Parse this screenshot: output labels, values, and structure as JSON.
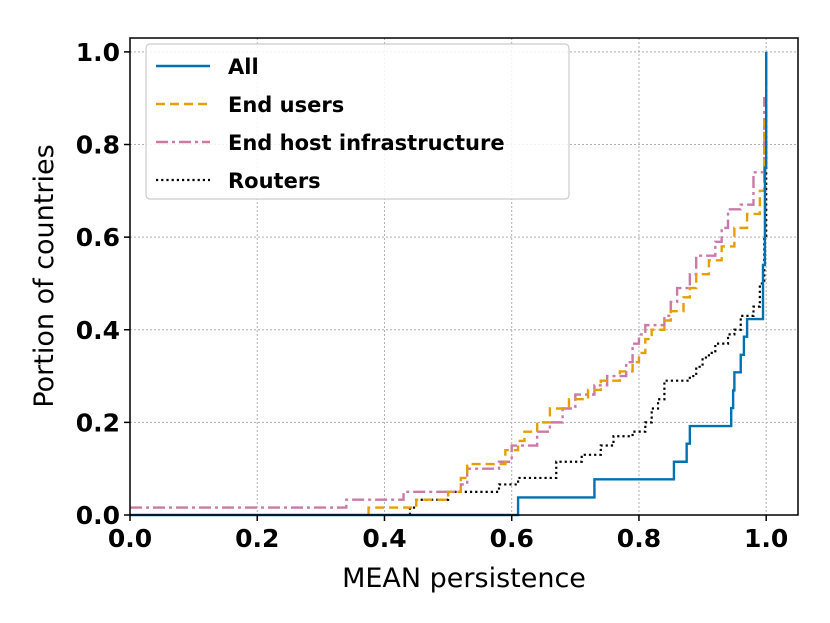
{
  "chart_data": {
    "type": "line",
    "xlabel": "MEAN persistence",
    "ylabel": "Portion of countries",
    "xlim": [
      0.0,
      1.05
    ],
    "ylim": [
      0.0,
      1.03
    ],
    "xticks": [
      "0.0",
      "0.2",
      "0.4",
      "0.6",
      "0.8",
      "1.0"
    ],
    "yticks": [
      "0.0",
      "0.2",
      "0.4",
      "0.6",
      "0.8",
      "1.0"
    ],
    "grid": true,
    "legend_position": "top-left",
    "series": [
      {
        "name": "All",
        "color": "#0072b2",
        "dash": "solid",
        "points": [
          [
            0.0,
            0.0
          ],
          [
            0.61,
            0.0
          ],
          [
            0.61,
            0.038
          ],
          [
            0.73,
            0.038
          ],
          [
            0.73,
            0.077
          ],
          [
            0.855,
            0.077
          ],
          [
            0.855,
            0.115
          ],
          [
            0.875,
            0.115
          ],
          [
            0.875,
            0.154
          ],
          [
            0.88,
            0.154
          ],
          [
            0.88,
            0.192
          ],
          [
            0.945,
            0.192
          ],
          [
            0.945,
            0.231
          ],
          [
            0.948,
            0.231
          ],
          [
            0.948,
            0.269
          ],
          [
            0.95,
            0.269
          ],
          [
            0.95,
            0.308
          ],
          [
            0.96,
            0.308
          ],
          [
            0.96,
            0.346
          ],
          [
            0.965,
            0.346
          ],
          [
            0.965,
            0.385
          ],
          [
            0.97,
            0.385
          ],
          [
            0.97,
            0.423
          ],
          [
            0.995,
            0.423
          ],
          [
            0.995,
            0.54
          ],
          [
            0.998,
            0.54
          ],
          [
            0.998,
            0.75
          ],
          [
            1.0,
            0.75
          ],
          [
            1.0,
            1.0
          ]
        ]
      },
      {
        "name": "End users",
        "color": "#e69f00",
        "dash": "dashed",
        "points": [
          [
            0.375,
            0.0
          ],
          [
            0.375,
            0.016
          ],
          [
            0.45,
            0.016
          ],
          [
            0.45,
            0.033
          ],
          [
            0.5,
            0.033
          ],
          [
            0.5,
            0.05
          ],
          [
            0.52,
            0.05
          ],
          [
            0.52,
            0.08
          ],
          [
            0.53,
            0.08
          ],
          [
            0.53,
            0.11
          ],
          [
            0.59,
            0.11
          ],
          [
            0.59,
            0.14
          ],
          [
            0.61,
            0.14
          ],
          [
            0.61,
            0.16
          ],
          [
            0.62,
            0.16
          ],
          [
            0.62,
            0.18
          ],
          [
            0.64,
            0.18
          ],
          [
            0.64,
            0.2
          ],
          [
            0.66,
            0.2
          ],
          [
            0.66,
            0.23
          ],
          [
            0.69,
            0.23
          ],
          [
            0.69,
            0.25
          ],
          [
            0.72,
            0.25
          ],
          [
            0.72,
            0.27
          ],
          [
            0.74,
            0.27
          ],
          [
            0.74,
            0.29
          ],
          [
            0.77,
            0.29
          ],
          [
            0.77,
            0.31
          ],
          [
            0.79,
            0.31
          ],
          [
            0.79,
            0.33
          ],
          [
            0.8,
            0.33
          ],
          [
            0.8,
            0.35
          ],
          [
            0.81,
            0.35
          ],
          [
            0.81,
            0.38
          ],
          [
            0.82,
            0.38
          ],
          [
            0.82,
            0.4
          ],
          [
            0.84,
            0.4
          ],
          [
            0.84,
            0.42
          ],
          [
            0.85,
            0.42
          ],
          [
            0.85,
            0.44
          ],
          [
            0.87,
            0.44
          ],
          [
            0.87,
            0.47
          ],
          [
            0.88,
            0.47
          ],
          [
            0.88,
            0.49
          ],
          [
            0.89,
            0.49
          ],
          [
            0.89,
            0.52
          ],
          [
            0.91,
            0.52
          ],
          [
            0.91,
            0.55
          ],
          [
            0.93,
            0.55
          ],
          [
            0.93,
            0.58
          ],
          [
            0.95,
            0.58
          ],
          [
            0.95,
            0.62
          ],
          [
            0.97,
            0.62
          ],
          [
            0.97,
            0.65
          ],
          [
            0.99,
            0.65
          ],
          [
            0.99,
            0.7
          ],
          [
            0.997,
            0.7
          ],
          [
            0.997,
            0.85
          ],
          [
            1.0,
            0.85
          ],
          [
            1.0,
            1.0
          ]
        ]
      },
      {
        "name": "End host infrastructure",
        "color": "#cc79a7",
        "dash": "dashdot",
        "points": [
          [
            0.0,
            0.016
          ],
          [
            0.34,
            0.016
          ],
          [
            0.34,
            0.033
          ],
          [
            0.43,
            0.033
          ],
          [
            0.43,
            0.05
          ],
          [
            0.52,
            0.05
          ],
          [
            0.52,
            0.066
          ],
          [
            0.53,
            0.066
          ],
          [
            0.53,
            0.1
          ],
          [
            0.58,
            0.1
          ],
          [
            0.58,
            0.115
          ],
          [
            0.6,
            0.115
          ],
          [
            0.6,
            0.15
          ],
          [
            0.64,
            0.15
          ],
          [
            0.64,
            0.18
          ],
          [
            0.66,
            0.18
          ],
          [
            0.66,
            0.2
          ],
          [
            0.68,
            0.2
          ],
          [
            0.68,
            0.23
          ],
          [
            0.7,
            0.23
          ],
          [
            0.7,
            0.26
          ],
          [
            0.73,
            0.26
          ],
          [
            0.73,
            0.28
          ],
          [
            0.75,
            0.28
          ],
          [
            0.75,
            0.3
          ],
          [
            0.78,
            0.3
          ],
          [
            0.78,
            0.33
          ],
          [
            0.79,
            0.33
          ],
          [
            0.79,
            0.37
          ],
          [
            0.8,
            0.37
          ],
          [
            0.8,
            0.39
          ],
          [
            0.81,
            0.39
          ],
          [
            0.81,
            0.41
          ],
          [
            0.84,
            0.41
          ],
          [
            0.84,
            0.43
          ],
          [
            0.85,
            0.43
          ],
          [
            0.85,
            0.46
          ],
          [
            0.86,
            0.46
          ],
          [
            0.86,
            0.49
          ],
          [
            0.88,
            0.49
          ],
          [
            0.88,
            0.52
          ],
          [
            0.89,
            0.52
          ],
          [
            0.89,
            0.56
          ],
          [
            0.92,
            0.56
          ],
          [
            0.92,
            0.59
          ],
          [
            0.93,
            0.59
          ],
          [
            0.93,
            0.62
          ],
          [
            0.94,
            0.62
          ],
          [
            0.94,
            0.66
          ],
          [
            0.96,
            0.66
          ],
          [
            0.96,
            0.67
          ],
          [
            0.98,
            0.67
          ],
          [
            0.98,
            0.74
          ],
          [
            0.997,
            0.74
          ],
          [
            0.997,
            0.9
          ],
          [
            1.0,
            0.9
          ],
          [
            1.0,
            1.0
          ]
        ]
      },
      {
        "name": "Routers",
        "color": "#000000",
        "dash": "dotted",
        "points": [
          [
            0.44,
            0.0
          ],
          [
            0.44,
            0.016
          ],
          [
            0.45,
            0.016
          ],
          [
            0.45,
            0.033
          ],
          [
            0.5,
            0.033
          ],
          [
            0.5,
            0.05
          ],
          [
            0.58,
            0.05
          ],
          [
            0.58,
            0.066
          ],
          [
            0.61,
            0.066
          ],
          [
            0.61,
            0.08
          ],
          [
            0.67,
            0.08
          ],
          [
            0.67,
            0.115
          ],
          [
            0.71,
            0.115
          ],
          [
            0.71,
            0.13
          ],
          [
            0.74,
            0.13
          ],
          [
            0.74,
            0.15
          ],
          [
            0.76,
            0.15
          ],
          [
            0.76,
            0.17
          ],
          [
            0.79,
            0.17
          ],
          [
            0.79,
            0.18
          ],
          [
            0.81,
            0.18
          ],
          [
            0.81,
            0.2
          ],
          [
            0.82,
            0.2
          ],
          [
            0.82,
            0.23
          ],
          [
            0.83,
            0.23
          ],
          [
            0.83,
            0.25
          ],
          [
            0.84,
            0.25
          ],
          [
            0.84,
            0.29
          ],
          [
            0.88,
            0.29
          ],
          [
            0.88,
            0.3
          ],
          [
            0.89,
            0.3
          ],
          [
            0.89,
            0.32
          ],
          [
            0.9,
            0.32
          ],
          [
            0.9,
            0.34
          ],
          [
            0.91,
            0.34
          ],
          [
            0.91,
            0.35
          ],
          [
            0.92,
            0.35
          ],
          [
            0.92,
            0.37
          ],
          [
            0.94,
            0.37
          ],
          [
            0.94,
            0.39
          ],
          [
            0.95,
            0.39
          ],
          [
            0.95,
            0.4
          ],
          [
            0.96,
            0.4
          ],
          [
            0.96,
            0.43
          ],
          [
            0.98,
            0.43
          ],
          [
            0.98,
            0.45
          ],
          [
            0.99,
            0.45
          ],
          [
            0.99,
            0.5
          ],
          [
            0.997,
            0.5
          ],
          [
            0.997,
            0.6
          ],
          [
            1.0,
            0.6
          ],
          [
            1.0,
            1.0
          ]
        ]
      }
    ]
  }
}
